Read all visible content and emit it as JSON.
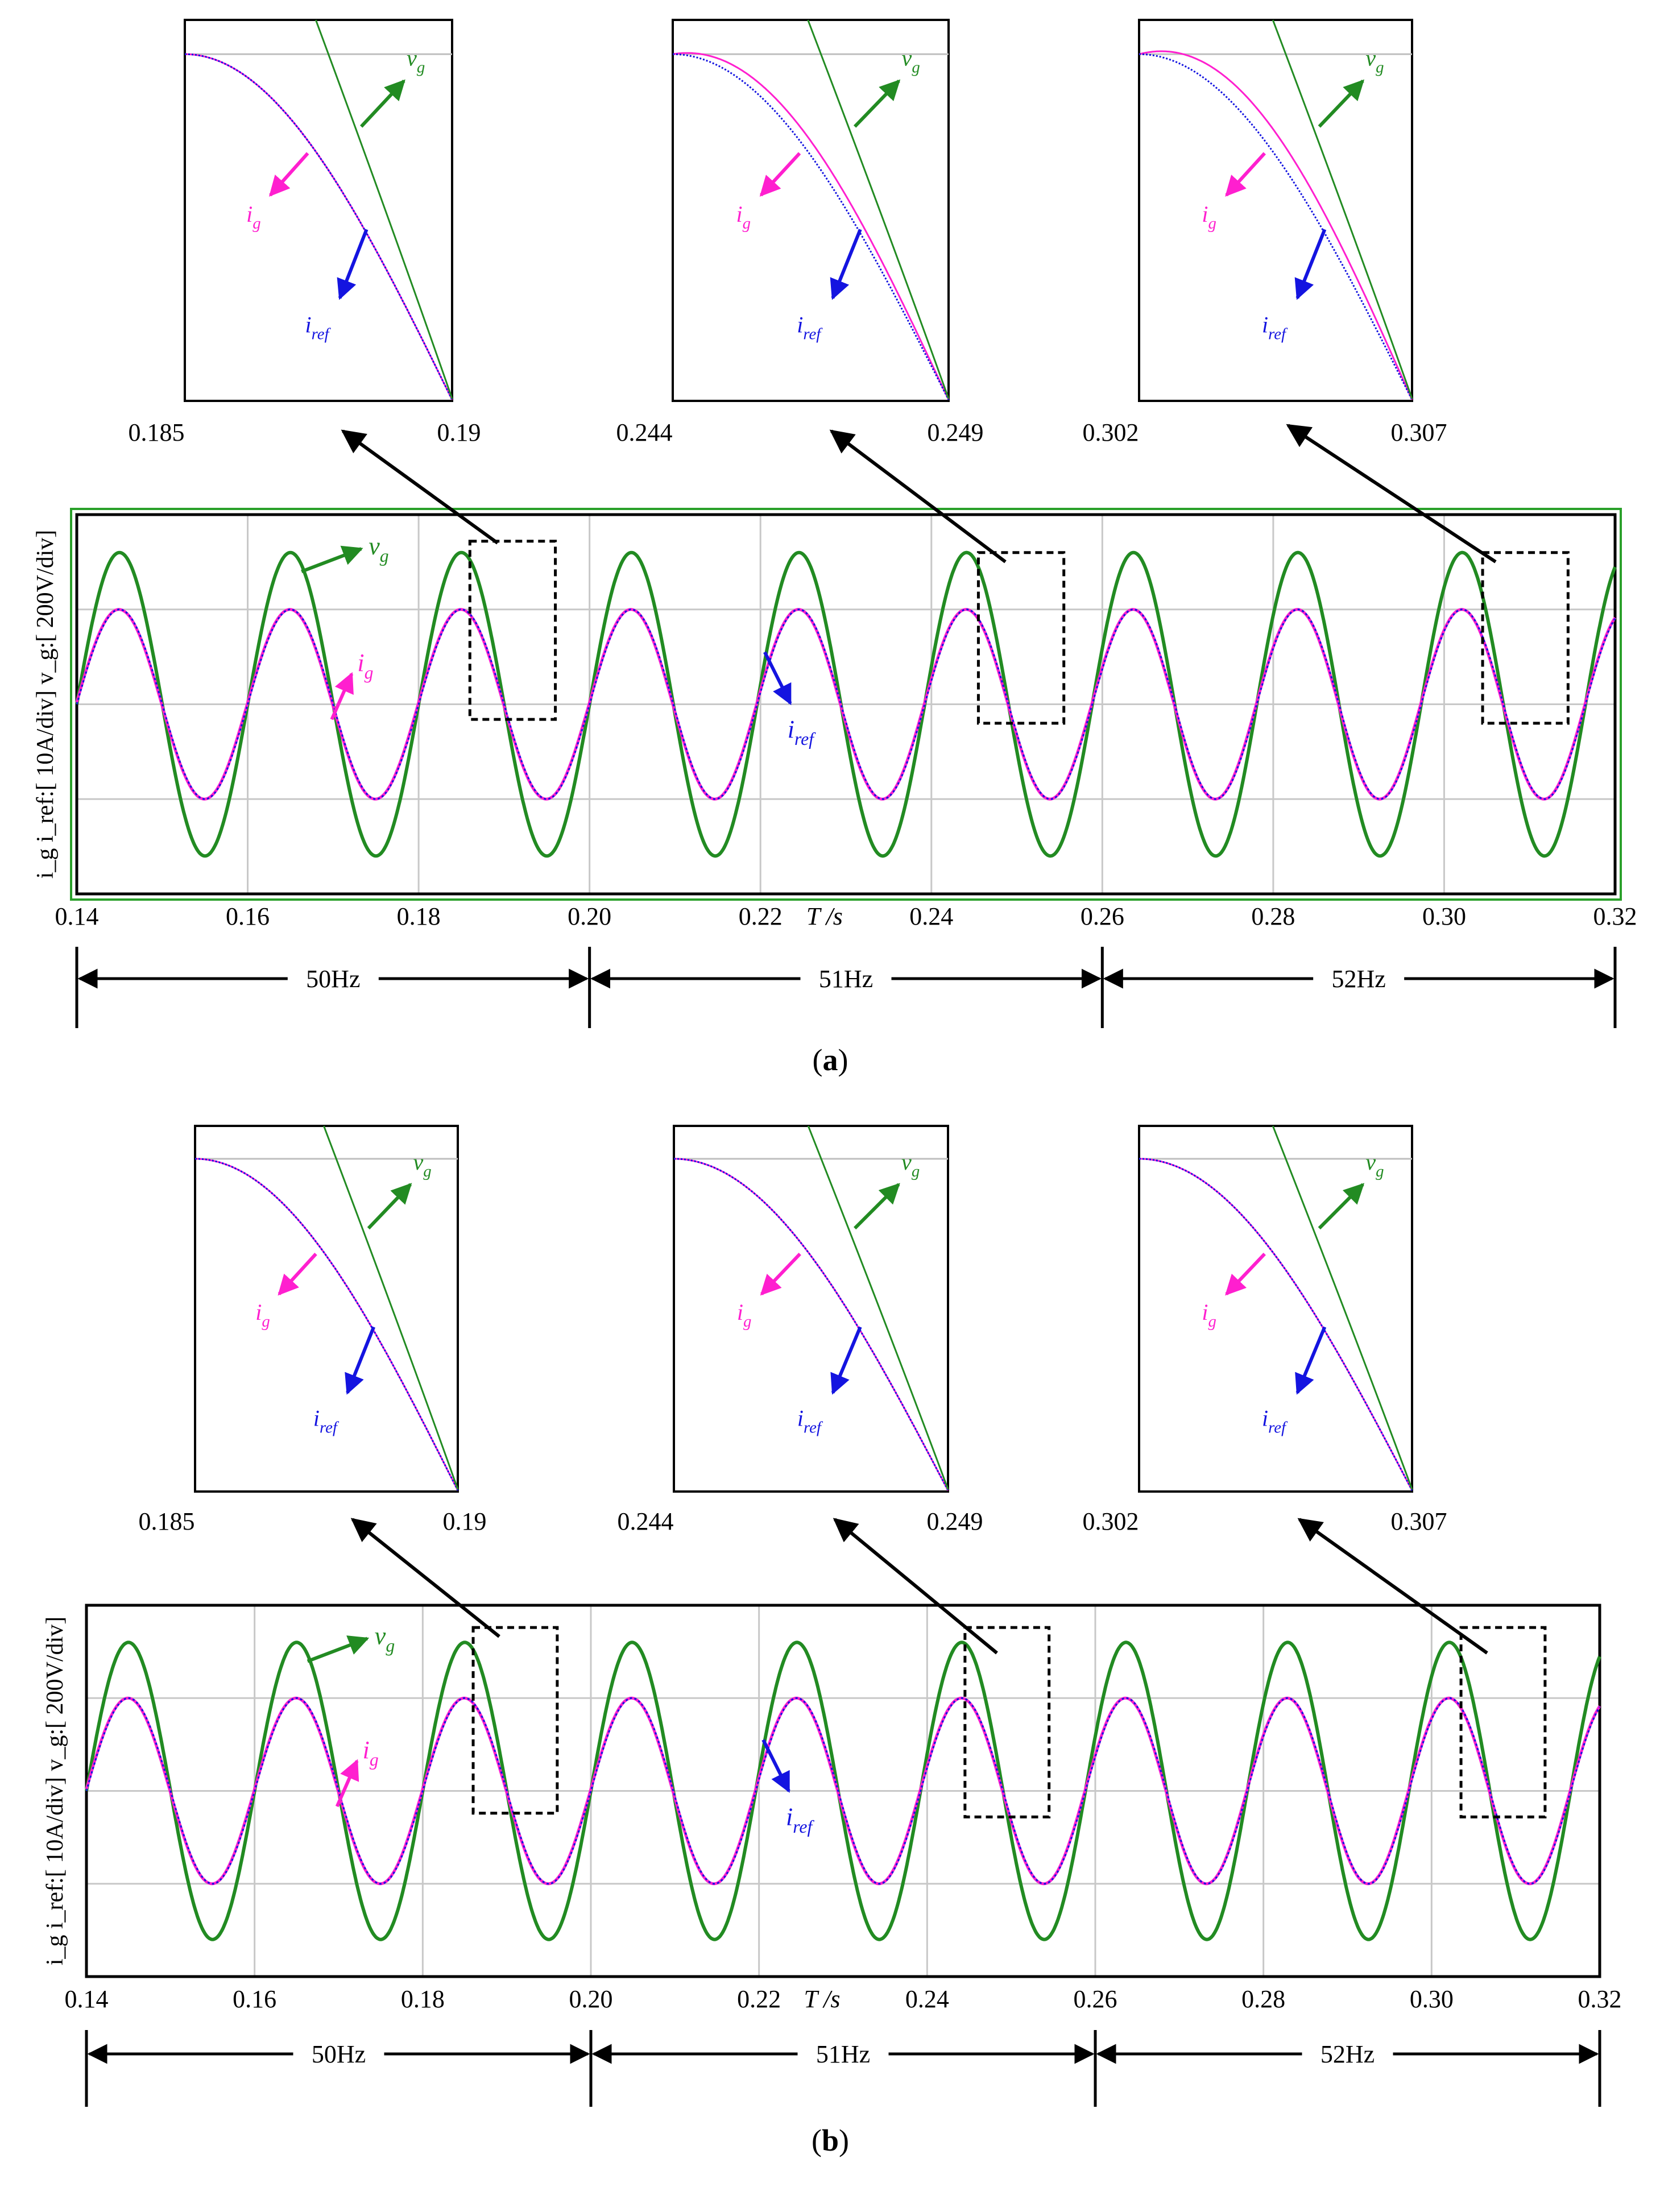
{
  "colors": {
    "vg": "#228b22",
    "ig": "#ff1fcf",
    "iref": "#1414e0",
    "grid": "#c8c8c8",
    "frame": "#000000",
    "panel_a_border": "#2aa02a"
  },
  "panels": [
    {
      "label": "(a)",
      "y_axis_label_left": "i_g i_ref:[ 10A/div]",
      "y_axis_label_right": "v_g:[ 200V/div]",
      "x_unit": "T /s",
      "x_ticks": [
        "0.14",
        "0.16",
        "0.18",
        "0.20",
        "0.22",
        "0.24",
        "0.26",
        "0.28",
        "0.30",
        "0.32"
      ],
      "freq_segments": [
        "50Hz",
        "51Hz",
        "52Hz"
      ],
      "legend": {
        "vg": "v",
        "vg_sub": "g",
        "ig": "i",
        "ig_sub": "g",
        "iref": "i",
        "iref_sub": "ref"
      },
      "insets": [
        {
          "xmin": "0.185",
          "xmax": "0.19",
          "ig_offset": 0.0
        },
        {
          "xmin": "0.244",
          "xmax": "0.249",
          "ig_offset": 0.35
        },
        {
          "xmin": "0.302",
          "xmax": "0.307",
          "ig_offset": 0.55
        }
      ]
    },
    {
      "label": "(b)",
      "y_axis_label_left": "i_g i_ref:[ 10A/div]",
      "y_axis_label_right": "v_g:[ 200V/div]",
      "x_unit": "T /s",
      "x_ticks": [
        "0.14",
        "0.16",
        "0.18",
        "0.20",
        "0.22",
        "0.24",
        "0.26",
        "0.28",
        "0.30",
        "0.32"
      ],
      "freq_segments": [
        "50Hz",
        "51Hz",
        "52Hz"
      ],
      "legend": {
        "vg": "v",
        "vg_sub": "g",
        "ig": "i",
        "ig_sub": "g",
        "iref": "i",
        "iref_sub": "ref"
      },
      "insets": [
        {
          "xmin": "0.185",
          "xmax": "0.19",
          "ig_offset": 0.0
        },
        {
          "xmin": "0.244",
          "xmax": "0.249",
          "ig_offset": 0.0
        },
        {
          "xmin": "0.302",
          "xmax": "0.307",
          "ig_offset": 0.0
        }
      ]
    }
  ],
  "chart_data": [
    {
      "type": "line",
      "title": "(a)",
      "xlabel": "T /s",
      "ylabel": "i_g i_ref:[ 10A/div]  v_g:[ 200V/div]",
      "xlim": [
        0.14,
        0.32
      ],
      "ylim_div": [
        -2,
        2
      ],
      "grid": true,
      "frequency_segments": [
        {
          "label": "50Hz",
          "from": 0.14,
          "to": 0.2,
          "freq": 50
        },
        {
          "label": "51Hz",
          "from": 0.2,
          "to": 0.26,
          "freq": 51
        },
        {
          "label": "52Hz",
          "from": 0.26,
          "to": 0.32,
          "freq": 52
        }
      ],
      "series": [
        {
          "name": "v_g",
          "amplitude_div": 1.6,
          "waveform": "sine"
        },
        {
          "name": "i_g",
          "amplitude_div": 1.0,
          "waveform": "sine"
        },
        {
          "name": "i_ref",
          "amplitude_div": 1.0,
          "waveform": "sine"
        }
      ],
      "zoom_windows": [
        [
          0.185,
          0.19
        ],
        [
          0.244,
          0.249
        ],
        [
          0.302,
          0.307
        ]
      ]
    },
    {
      "type": "line",
      "title": "(b)",
      "xlabel": "T /s",
      "ylabel": "i_g i_ref:[ 10A/div]  v_g:[ 200V/div]",
      "xlim": [
        0.14,
        0.32
      ],
      "ylim_div": [
        -2,
        2
      ],
      "grid": true,
      "frequency_segments": [
        {
          "label": "50Hz",
          "from": 0.14,
          "to": 0.2,
          "freq": 50
        },
        {
          "label": "51Hz",
          "from": 0.2,
          "to": 0.26,
          "freq": 51
        },
        {
          "label": "52Hz",
          "from": 0.26,
          "to": 0.32,
          "freq": 52
        }
      ],
      "series": [
        {
          "name": "v_g",
          "amplitude_div": 1.6,
          "waveform": "sine"
        },
        {
          "name": "i_g",
          "amplitude_div": 1.0,
          "waveform": "sine"
        },
        {
          "name": "i_ref",
          "amplitude_div": 1.0,
          "waveform": "sine"
        }
      ],
      "zoom_windows": [
        [
          0.185,
          0.19
        ],
        [
          0.244,
          0.249
        ],
        [
          0.302,
          0.307
        ]
      ]
    }
  ]
}
